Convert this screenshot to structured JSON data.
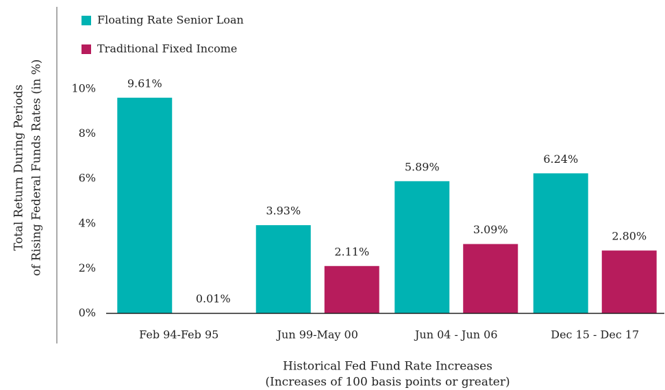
{
  "chart_data": {
    "type": "bar",
    "y_label": [
      "Total Return During Periods",
      "of Rising Federal Funds Rates (in %)"
    ],
    "x_label": [
      "Historical Fed Fund Rate Increases",
      "(Increases of 100 basis points or greater)"
    ],
    "categories": [
      "Feb 94-Feb 95",
      "Jun 99-May 00",
      "Jun 04 - Jun 06",
      "Dec 15 - Dec 17"
    ],
    "series": [
      {
        "name": "Floating Rate Senior Loan",
        "color": "#00b3b3",
        "values": [
          9.61,
          3.93,
          5.89,
          6.24
        ],
        "value_labels": [
          "9.61%",
          "3.93%",
          "5.89%",
          "6.24%"
        ]
      },
      {
        "name": "Traditional Fixed Income",
        "color": "#b71c5c",
        "values": [
          0.01,
          2.11,
          3.09,
          2.8
        ],
        "value_labels": [
          "0.01%",
          "2.11%",
          "3.09%",
          "2.80%"
        ]
      }
    ],
    "ylim": [
      0,
      10
    ],
    "yticks": [
      {
        "value": 0,
        "label": "0%"
      },
      {
        "value": 2,
        "label": "2%"
      },
      {
        "value": 4,
        "label": "4%"
      },
      {
        "value": 6,
        "label": "6%"
      },
      {
        "value": 8,
        "label": "8%"
      },
      {
        "value": 10,
        "label": "10%"
      }
    ],
    "grid": false,
    "legend": "top-left"
  }
}
